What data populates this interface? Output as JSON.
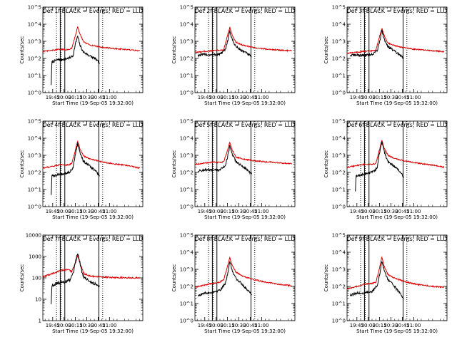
{
  "figure_title": "",
  "chart_data": [
    {
      "type": "line",
      "title": "Det 1f BLACK = Events, RED = LLD",
      "xlabel": "Start Time (19-Sep-05 19:32:00)",
      "ylabel": "Counts/sec",
      "xlim": [
        "19:32",
        "21:44"
      ],
      "yscale": "log",
      "ylim": [
        1,
        100000
      ],
      "ytick_labels": [
        "10^0",
        "10^1",
        "10^2",
        "10^3",
        "10^4",
        "10^5"
      ],
      "xtick_labels": [
        "19:45",
        "20:00",
        "20:15",
        "20:30",
        "20:45",
        "21:00"
      ],
      "solid_vlines": [
        "19:55",
        "20:01",
        "20:46"
      ],
      "dotted_vlines": [
        "19:50",
        "19:56",
        "20:51"
      ],
      "marker": "C",
      "series": [
        {
          "name": "Events",
          "color": "#000000",
          "x": [
            "19:43",
            "19:44",
            "19:50",
            "19:55",
            "19:56",
            "20:03",
            "20:08",
            "20:12",
            "20:15",
            "20:18",
            "20:21",
            "20:25",
            "20:33",
            "20:42",
            "20:47"
          ],
          "y": [
            3,
            60,
            80,
            90,
            85,
            95,
            110,
            150,
            700,
            2000,
            600,
            250,
            150,
            90,
            50
          ]
        },
        {
          "name": "LLD",
          "color": "#dd0000",
          "x": [
            "19:32",
            "19:45",
            "19:55",
            "20:05",
            "20:10",
            "20:15",
            "20:18",
            "20:21",
            "20:26",
            "20:35",
            "20:50",
            "21:05",
            "21:25",
            "21:40"
          ],
          "y": [
            250,
            300,
            340,
            320,
            380,
            2200,
            7000,
            2600,
            900,
            600,
            450,
            380,
            320,
            280
          ]
        }
      ]
    },
    {
      "type": "line",
      "title": "Det 2f BLACK = Events, RED = LLD",
      "xlabel": "Start Time (19-Sep-05 19:32:00)",
      "ylabel": "Counts/sec",
      "xlim": [
        "19:32",
        "21:44"
      ],
      "yscale": "log",
      "ylim": [
        1,
        100000
      ],
      "ytick_labels": [
        "10^0",
        "10^1",
        "10^2",
        "10^3",
        "10^4",
        "10^5"
      ],
      "xtick_labels": [
        "19:45",
        "20:00",
        "20:15",
        "20:30",
        "20:45",
        "21:00"
      ],
      "solid_vlines": [
        "19:55",
        "20:01",
        "20:46"
      ],
      "dotted_vlines": [
        "19:50",
        "19:56",
        "20:51"
      ],
      "marker": "C",
      "series": [
        {
          "name": "Events",
          "color": "#000000",
          "x": [
            "19:36",
            "19:45",
            "19:55",
            "20:05",
            "20:12",
            "20:16",
            "20:18",
            "20:21",
            "20:26",
            "20:33",
            "20:42",
            "20:47"
          ],
          "y": [
            150,
            170,
            160,
            180,
            300,
            1500,
            4000,
            1300,
            500,
            300,
            180,
            120
          ]
        },
        {
          "name": "LLD",
          "color": "#dd0000",
          "x": [
            "19:32",
            "19:45",
            "19:55",
            "20:05",
            "20:10",
            "20:15",
            "20:18",
            "20:21",
            "20:26",
            "20:35",
            "20:50",
            "21:05",
            "21:25",
            "21:40"
          ],
          "y": [
            220,
            260,
            280,
            300,
            320,
            2200,
            6500,
            2400,
            900,
            600,
            420,
            360,
            300,
            280
          ]
        }
      ]
    },
    {
      "type": "line",
      "title": "Det 3f BLACK = Events, RED = LLD",
      "xlabel": "Start Time (19-Sep-05 19:32:00)",
      "ylabel": "Counts/sec",
      "xlim": [
        "19:32",
        "21:44"
      ],
      "yscale": "log",
      "ylim": [
        1,
        100000
      ],
      "ytick_labels": [
        "10^0",
        "10^1",
        "10^2",
        "10^3",
        "10^4",
        "10^5"
      ],
      "xtick_labels": [
        "19:45",
        "20:00",
        "20:15",
        "20:30",
        "20:45",
        "21:00"
      ],
      "solid_vlines": [
        "19:55",
        "20:01",
        "20:46"
      ],
      "dotted_vlines": [
        "19:50",
        "19:56",
        "20:51"
      ],
      "marker": "C",
      "series": [
        {
          "name": "Events",
          "color": "#000000",
          "x": [
            "19:36",
            "19:45",
            "19:55",
            "20:05",
            "20:12",
            "20:16",
            "20:18",
            "20:21",
            "20:26",
            "20:33",
            "20:42",
            "20:47"
          ],
          "y": [
            150,
            160,
            150,
            170,
            300,
            1500,
            4500,
            1400,
            500,
            300,
            150,
            100
          ]
        },
        {
          "name": "LLD",
          "color": "#dd0000",
          "x": [
            "19:32",
            "19:45",
            "19:55",
            "20:05",
            "20:10",
            "20:15",
            "20:18",
            "20:21",
            "20:26",
            "20:35",
            "20:50",
            "21:05",
            "21:25",
            "21:40"
          ],
          "y": [
            200,
            230,
            260,
            280,
            300,
            2000,
            6000,
            2200,
            800,
            550,
            400,
            330,
            280,
            250
          ]
        }
      ]
    },
    {
      "type": "line",
      "title": "Det 4f BLACK = Events, RED = LLD",
      "xlabel": "Start Time (19-Sep-05 19:32:00)",
      "ylabel": "Counts/sec",
      "xlim": [
        "19:32",
        "21:44"
      ],
      "yscale": "log",
      "ylim": [
        1,
        100000
      ],
      "ytick_labels": [
        "10^0",
        "10^1",
        "10^2",
        "10^3",
        "10^4",
        "10^5"
      ],
      "xtick_labels": [
        "19:45",
        "20:00",
        "20:15",
        "20:30",
        "20:45",
        "21:00"
      ],
      "solid_vlines": [
        "19:55",
        "20:01",
        "20:46"
      ],
      "dotted_vlines": [
        "19:50",
        "19:56",
        "20:51"
      ],
      "marker": "C",
      "series": [
        {
          "name": "Events",
          "color": "#000000",
          "x": [
            "19:43",
            "19:44",
            "19:50",
            "19:55",
            "19:56",
            "20:03",
            "20:08",
            "20:12",
            "20:15",
            "20:18",
            "20:21",
            "20:25",
            "20:33",
            "20:42",
            "20:47"
          ],
          "y": [
            5,
            60,
            70,
            80,
            80,
            90,
            110,
            200,
            1200,
            5000,
            1500,
            500,
            250,
            120,
            60
          ]
        },
        {
          "name": "LLD",
          "color": "#dd0000",
          "x": [
            "19:32",
            "19:45",
            "19:55",
            "20:05",
            "20:10",
            "20:15",
            "20:18",
            "20:21",
            "20:26",
            "20:35",
            "20:50",
            "21:05",
            "21:25",
            "21:40"
          ],
          "y": [
            180,
            230,
            280,
            270,
            320,
            2000,
            7000,
            2400,
            900,
            600,
            420,
            320,
            250,
            180
          ]
        }
      ]
    },
    {
      "type": "line",
      "title": "Det 5f BLACK = Events, RED = LLD",
      "xlabel": "Start Time (19-Sep-05 19:32:00)",
      "ylabel": "Counts/sec",
      "xlim": [
        "19:32",
        "21:44"
      ],
      "yscale": "log",
      "ylim": [
        1,
        100000
      ],
      "ytick_labels": [
        "10^0",
        "10^1",
        "10^2",
        "10^3",
        "10^4",
        "10^5"
      ],
      "xtick_labels": [
        "19:45",
        "20:00",
        "20:15",
        "20:30",
        "20:45",
        "21:00"
      ],
      "solid_vlines": [
        "19:55",
        "20:01",
        "20:46"
      ],
      "dotted_vlines": [
        "19:50",
        "19:56",
        "20:51"
      ],
      "marker": "C",
      "series": [
        {
          "name": "Events",
          "color": "#000000",
          "x": [
            "19:36",
            "19:45",
            "19:55",
            "20:05",
            "20:12",
            "20:16",
            "20:18",
            "20:21",
            "20:26",
            "20:33",
            "20:42",
            "20:47"
          ],
          "y": [
            120,
            140,
            130,
            140,
            250,
            1200,
            3500,
            1200,
            450,
            250,
            130,
            80
          ]
        },
        {
          "name": "LLD",
          "color": "#dd0000",
          "x": [
            "19:32",
            "19:45",
            "19:55",
            "20:05",
            "20:10",
            "20:15",
            "20:18",
            "20:21",
            "20:26",
            "20:35",
            "20:50",
            "21:05",
            "21:25",
            "21:40"
          ],
          "y": [
            300,
            350,
            400,
            380,
            420,
            2000,
            6000,
            2200,
            800,
            600,
            480,
            420,
            360,
            320
          ]
        }
      ]
    },
    {
      "type": "line",
      "title": "Det 6f BLACK = Events, RED = LLD",
      "xlabel": "Start Time (19-Sep-05 19:32:00)",
      "ylabel": "Counts/sec",
      "xlim": [
        "19:32",
        "21:44"
      ],
      "yscale": "log",
      "ylim": [
        1,
        100000
      ],
      "ytick_labels": [
        "10^0",
        "10^1",
        "10^2",
        "10^3",
        "10^4",
        "10^5"
      ],
      "xtick_labels": [
        "19:45",
        "20:00",
        "20:15",
        "20:30",
        "20:45",
        "21:00"
      ],
      "solid_vlines": [
        "19:55",
        "20:01",
        "20:46"
      ],
      "dotted_vlines": [
        "19:50",
        "19:56",
        "20:51"
      ],
      "marker": "C",
      "series": [
        {
          "name": "Events",
          "color": "#000000",
          "x": [
            "19:43",
            "19:44",
            "19:50",
            "19:55",
            "19:56",
            "20:03",
            "20:08",
            "20:12",
            "20:15",
            "20:18",
            "20:21",
            "20:25",
            "20:33",
            "20:42",
            "20:47"
          ],
          "y": [
            8,
            60,
            70,
            80,
            80,
            100,
            120,
            200,
            1500,
            6000,
            1800,
            500,
            250,
            110,
            50
          ]
        },
        {
          "name": "LLD",
          "color": "#dd0000",
          "x": [
            "19:32",
            "19:45",
            "19:55",
            "20:05",
            "20:10",
            "20:15",
            "20:18",
            "20:21",
            "20:26",
            "20:35",
            "20:50",
            "21:05",
            "21:25",
            "21:40"
          ],
          "y": [
            200,
            250,
            300,
            290,
            330,
            2200,
            8000,
            2600,
            1000,
            650,
            450,
            350,
            270,
            200
          ]
        }
      ]
    },
    {
      "type": "line",
      "title": "Det 7f BLACK = Events, RED = LLD",
      "xlabel": "Start Time (19-Sep-05 19:32:00)",
      "ylabel": "Counts/sec",
      "xlim": [
        "19:32",
        "21:44"
      ],
      "yscale": "log",
      "ylim": [
        1,
        10000
      ],
      "ytick_labels": [
        "1",
        "10",
        "100",
        "1000",
        "10000"
      ],
      "xtick_labels": [
        "19:45",
        "20:00",
        "20:15",
        "20:30",
        "20:45",
        "21:00"
      ],
      "solid_vlines": [
        "19:55",
        "20:01",
        "20:46"
      ],
      "dotted_vlines": [
        "19:50",
        "19:56",
        "20:51"
      ],
      "marker": "C",
      "series": [
        {
          "name": "Events",
          "color": "#000000",
          "x": [
            "19:43",
            "19:44",
            "19:50",
            "19:55",
            "19:56",
            "20:03",
            "20:08",
            "20:12",
            "20:15",
            "20:18",
            "20:21",
            "20:25",
            "20:33",
            "20:42",
            "20:47"
          ],
          "y": [
            6,
            45,
            55,
            60,
            60,
            70,
            80,
            150,
            500,
            1500,
            500,
            120,
            70,
            50,
            40
          ]
        },
        {
          "name": "LLD",
          "color": "#dd0000",
          "x": [
            "19:32",
            "19:45",
            "19:55",
            "20:05",
            "20:10",
            "20:15",
            "20:18",
            "20:21",
            "20:26",
            "20:35",
            "20:50",
            "21:05",
            "21:25",
            "21:40"
          ],
          "y": [
            110,
            160,
            220,
            240,
            200,
            500,
            1100,
            500,
            160,
            120,
            110,
            105,
            100,
            100
          ]
        }
      ]
    },
    {
      "type": "line",
      "title": "Det 8f BLACK = Events, RED = LLD",
      "xlabel": "Start Time (19-Sep-05 19:32:00)",
      "ylabel": "Counts/sec",
      "xlim": [
        "19:32",
        "21:44"
      ],
      "yscale": "log",
      "ylim": [
        1,
        100000
      ],
      "ytick_labels": [
        "10^0",
        "10^1",
        "10^2",
        "10^3",
        "10^4",
        "10^5"
      ],
      "xtick_labels": [
        "19:45",
        "20:00",
        "20:15",
        "20:30",
        "20:45",
        "21:00"
      ],
      "solid_vlines": [
        "19:55",
        "20:01",
        "20:46"
      ],
      "dotted_vlines": [
        "19:50",
        "19:56",
        "20:51"
      ],
      "marker": "C",
      "series": [
        {
          "name": "Events",
          "color": "#000000",
          "x": [
            "19:36",
            "19:45",
            "19:55",
            "20:05",
            "20:12",
            "20:16",
            "20:18",
            "20:21",
            "20:26",
            "20:33",
            "20:42",
            "20:47"
          ],
          "y": [
            30,
            40,
            45,
            60,
            150,
            700,
            3000,
            900,
            300,
            150,
            60,
            35
          ]
        },
        {
          "name": "LLD",
          "color": "#dd0000",
          "x": [
            "19:32",
            "19:45",
            "19:55",
            "20:05",
            "20:10",
            "20:15",
            "20:18",
            "20:21",
            "20:26",
            "20:35",
            "20:50",
            "21:05",
            "21:25",
            "21:40"
          ],
          "y": [
            90,
            120,
            150,
            180,
            250,
            1500,
            5000,
            1800,
            700,
            400,
            250,
            180,
            130,
            110
          ]
        }
      ]
    },
    {
      "type": "line",
      "title": "Det 9f BLACK = Events, RED = LLD",
      "xlabel": "Start Time (19-Sep-05 19:32:00)",
      "ylabel": "Counts/sec",
      "xlim": [
        "19:32",
        "21:44"
      ],
      "yscale": "log",
      "ylim": [
        1,
        100000
      ],
      "ytick_labels": [
        "10^0",
        "10^1",
        "10^2",
        "10^3",
        "10^4",
        "10^5"
      ],
      "xtick_labels": [
        "19:45",
        "20:00",
        "20:15",
        "20:30",
        "20:45",
        "21:00"
      ],
      "solid_vlines": [
        "19:55",
        "20:01",
        "20:46"
      ],
      "dotted_vlines": [
        "19:50",
        "19:56",
        "20:51"
      ],
      "marker": "C",
      "series": [
        {
          "name": "Events",
          "color": "#000000",
          "x": [
            "19:36",
            "19:45",
            "19:55",
            "20:05",
            "20:12",
            "20:16",
            "20:18",
            "20:21",
            "20:26",
            "20:33",
            "20:42",
            "20:47"
          ],
          "y": [
            30,
            40,
            40,
            50,
            120,
            800,
            3000,
            900,
            250,
            120,
            40,
            20
          ]
        },
        {
          "name": "LLD",
          "color": "#dd0000",
          "x": [
            "19:32",
            "19:45",
            "19:55",
            "20:05",
            "20:10",
            "20:15",
            "20:18",
            "20:21",
            "20:26",
            "20:35",
            "20:50",
            "21:05",
            "21:25",
            "21:40"
          ],
          "y": [
            70,
            100,
            140,
            150,
            170,
            1200,
            5000,
            1500,
            500,
            300,
            180,
            130,
            100,
            90
          ]
        }
      ]
    }
  ]
}
